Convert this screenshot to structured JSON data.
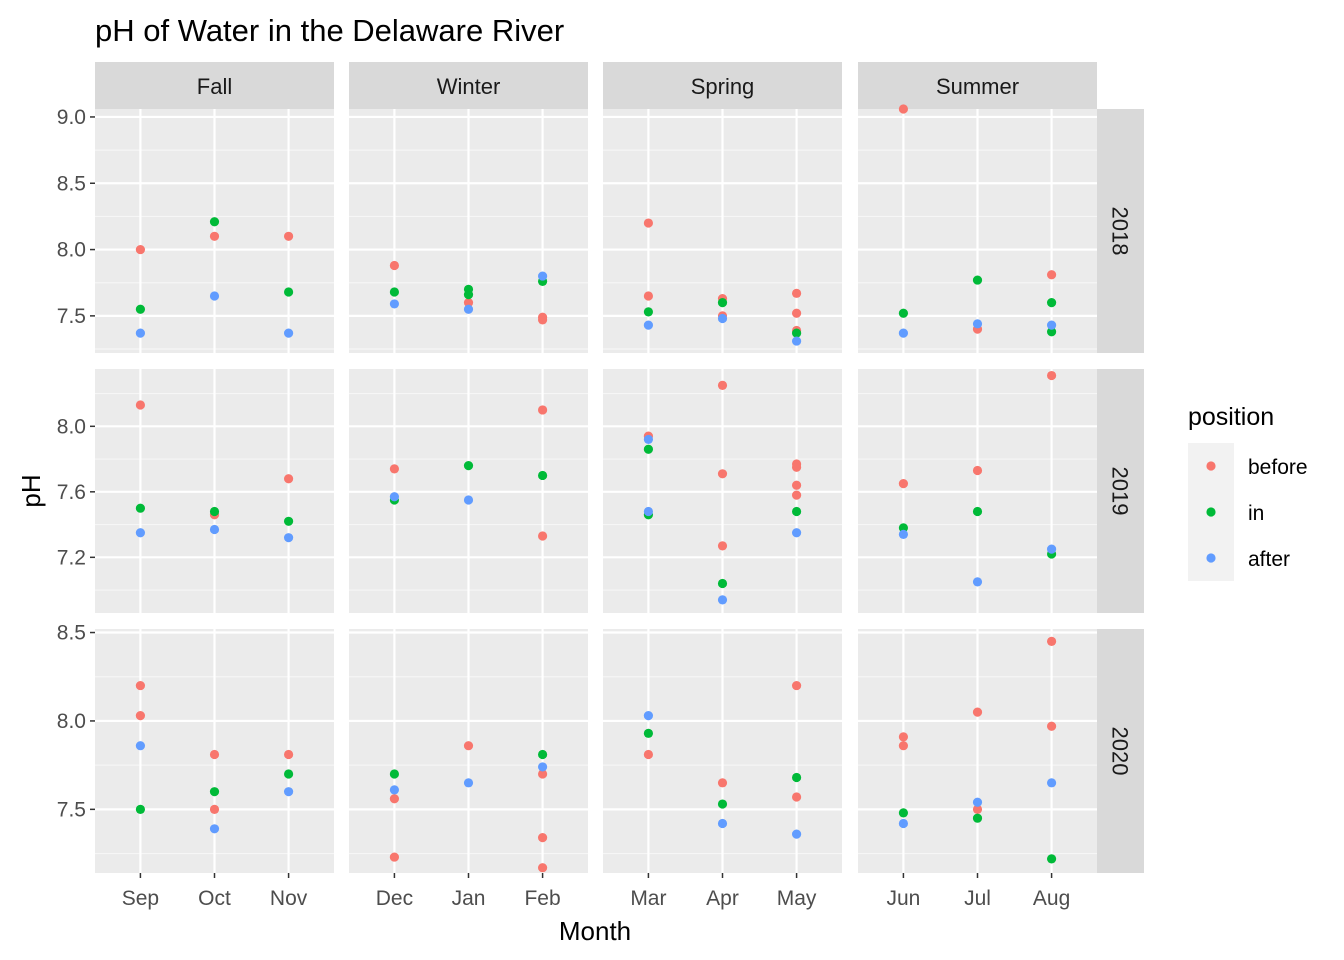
{
  "chart_data": {
    "type": "scatter",
    "title": "pH of Water in the Delaware River",
    "xlabel": "Month",
    "ylabel": "pH",
    "facet_cols": [
      {
        "name": "Fall",
        "months": [
          "Sep",
          "Oct",
          "Nov"
        ]
      },
      {
        "name": "Winter",
        "months": [
          "Dec",
          "Jan",
          "Feb"
        ]
      },
      {
        "name": "Spring",
        "months": [
          "Mar",
          "Apr",
          "May"
        ]
      },
      {
        "name": "Summer",
        "months": [
          "Jun",
          "Jul",
          "Aug"
        ]
      }
    ],
    "facet_rows": [
      {
        "name": "2018",
        "ylim": [
          7.22,
          9.06
        ],
        "yticks": [
          "7.5",
          "8.0",
          "8.5",
          "9.0"
        ]
      },
      {
        "name": "2019",
        "ylim": [
          6.86,
          8.35
        ],
        "yticks": [
          "7.2",
          "7.6",
          "8.0"
        ]
      },
      {
        "name": "2020",
        "ylim": [
          7.14,
          8.52
        ],
        "yticks": [
          "7.5",
          "8.0",
          "8.5"
        ]
      }
    ],
    "legend": {
      "title": "position",
      "placement": "right",
      "entries": [
        {
          "label": "before",
          "color": "#F8766D"
        },
        {
          "label": "in",
          "color": "#00BA38"
        },
        {
          "label": "after",
          "color": "#619CFF"
        }
      ]
    },
    "series": [
      {
        "name": "before",
        "color": "#F8766D",
        "points": [
          {
            "year": "2018",
            "month": "Sep",
            "pH": 8.0
          },
          {
            "year": "2018",
            "month": "Oct",
            "pH": 8.1
          },
          {
            "year": "2018",
            "month": "Nov",
            "pH": 8.1
          },
          {
            "year": "2018",
            "month": "Dec",
            "pH": 7.88
          },
          {
            "year": "2018",
            "month": "Jan",
            "pH": 7.6
          },
          {
            "year": "2018",
            "month": "Feb",
            "pH": 7.49
          },
          {
            "year": "2018",
            "month": "Feb",
            "pH": 7.47
          },
          {
            "year": "2018",
            "month": "Mar",
            "pH": 8.2
          },
          {
            "year": "2018",
            "month": "Mar",
            "pH": 7.65
          },
          {
            "year": "2018",
            "month": "Apr",
            "pH": 7.63
          },
          {
            "year": "2018",
            "month": "Apr",
            "pH": 7.5
          },
          {
            "year": "2018",
            "month": "May",
            "pH": 7.67
          },
          {
            "year": "2018",
            "month": "May",
            "pH": 7.52
          },
          {
            "year": "2018",
            "month": "May",
            "pH": 7.39
          },
          {
            "year": "2018",
            "month": "Jun",
            "pH": 9.06
          },
          {
            "year": "2018",
            "month": "Jul",
            "pH": 7.4
          },
          {
            "year": "2018",
            "month": "Aug",
            "pH": 7.81
          },
          {
            "year": "2019",
            "month": "Sep",
            "pH": 8.13
          },
          {
            "year": "2019",
            "month": "Oct",
            "pH": 7.46
          },
          {
            "year": "2019",
            "month": "Nov",
            "pH": 7.68
          },
          {
            "year": "2019",
            "month": "Dec",
            "pH": 7.74
          },
          {
            "year": "2019",
            "month": "Feb",
            "pH": 8.1
          },
          {
            "year": "2019",
            "month": "Feb",
            "pH": 7.33
          },
          {
            "year": "2019",
            "month": "Mar",
            "pH": 7.94
          },
          {
            "year": "2019",
            "month": "Apr",
            "pH": 8.25
          },
          {
            "year": "2019",
            "month": "Apr",
            "pH": 7.71
          },
          {
            "year": "2019",
            "month": "Apr",
            "pH": 7.27
          },
          {
            "year": "2019",
            "month": "May",
            "pH": 7.77
          },
          {
            "year": "2019",
            "month": "May",
            "pH": 7.75
          },
          {
            "year": "2019",
            "month": "May",
            "pH": 7.64
          },
          {
            "year": "2019",
            "month": "May",
            "pH": 7.58
          },
          {
            "year": "2019",
            "month": "Jun",
            "pH": 7.65
          },
          {
            "year": "2019",
            "month": "Jul",
            "pH": 7.73
          },
          {
            "year": "2019",
            "month": "Aug",
            "pH": 8.31
          },
          {
            "year": "2020",
            "month": "Sep",
            "pH": 8.2
          },
          {
            "year": "2020",
            "month": "Sep",
            "pH": 8.03
          },
          {
            "year": "2020",
            "month": "Oct",
            "pH": 7.81
          },
          {
            "year": "2020",
            "month": "Oct",
            "pH": 7.5
          },
          {
            "year": "2020",
            "month": "Nov",
            "pH": 7.81
          },
          {
            "year": "2020",
            "month": "Dec",
            "pH": 7.56
          },
          {
            "year": "2020",
            "month": "Dec",
            "pH": 7.23
          },
          {
            "year": "2020",
            "month": "Jan",
            "pH": 7.86
          },
          {
            "year": "2020",
            "month": "Feb",
            "pH": 7.7
          },
          {
            "year": "2020",
            "month": "Feb",
            "pH": 7.34
          },
          {
            "year": "2020",
            "month": "Feb",
            "pH": 7.17
          },
          {
            "year": "2020",
            "month": "Mar",
            "pH": 7.81
          },
          {
            "year": "2020",
            "month": "Apr",
            "pH": 7.65
          },
          {
            "year": "2020",
            "month": "May",
            "pH": 8.2
          },
          {
            "year": "2020",
            "month": "May",
            "pH": 7.57
          },
          {
            "year": "2020",
            "month": "Jun",
            "pH": 7.91
          },
          {
            "year": "2020",
            "month": "Jun",
            "pH": 7.86
          },
          {
            "year": "2020",
            "month": "Jul",
            "pH": 8.05
          },
          {
            "year": "2020",
            "month": "Jul",
            "pH": 7.5
          },
          {
            "year": "2020",
            "month": "Aug",
            "pH": 8.45
          },
          {
            "year": "2020",
            "month": "Aug",
            "pH": 7.97
          }
        ]
      },
      {
        "name": "in",
        "color": "#00BA38",
        "points": [
          {
            "year": "2018",
            "month": "Sep",
            "pH": 7.55
          },
          {
            "year": "2018",
            "month": "Oct",
            "pH": 8.21
          },
          {
            "year": "2018",
            "month": "Nov",
            "pH": 7.68
          },
          {
            "year": "2018",
            "month": "Dec",
            "pH": 7.68
          },
          {
            "year": "2018",
            "month": "Jan",
            "pH": 7.7
          },
          {
            "year": "2018",
            "month": "Jan",
            "pH": 7.66
          },
          {
            "year": "2018",
            "month": "Feb",
            "pH": 7.76
          },
          {
            "year": "2018",
            "month": "Mar",
            "pH": 7.53
          },
          {
            "year": "2018",
            "month": "Apr",
            "pH": 7.6
          },
          {
            "year": "2018",
            "month": "May",
            "pH": 7.37
          },
          {
            "year": "2018",
            "month": "Jun",
            "pH": 7.52
          },
          {
            "year": "2018",
            "month": "Jul",
            "pH": 7.77
          },
          {
            "year": "2018",
            "month": "Aug",
            "pH": 7.6
          },
          {
            "year": "2018",
            "month": "Aug",
            "pH": 7.38
          },
          {
            "year": "2019",
            "month": "Sep",
            "pH": 7.5
          },
          {
            "year": "2019",
            "month": "Oct",
            "pH": 7.48
          },
          {
            "year": "2019",
            "month": "Nov",
            "pH": 7.42
          },
          {
            "year": "2019",
            "month": "Dec",
            "pH": 7.55
          },
          {
            "year": "2019",
            "month": "Jan",
            "pH": 7.76
          },
          {
            "year": "2019",
            "month": "Feb",
            "pH": 7.7
          },
          {
            "year": "2019",
            "month": "Mar",
            "pH": 7.86
          },
          {
            "year": "2019",
            "month": "Mar",
            "pH": 7.46
          },
          {
            "year": "2019",
            "month": "Apr",
            "pH": 7.04
          },
          {
            "year": "2019",
            "month": "May",
            "pH": 7.48
          },
          {
            "year": "2019",
            "month": "Jun",
            "pH": 7.38
          },
          {
            "year": "2019",
            "month": "Jul",
            "pH": 7.48
          },
          {
            "year": "2019",
            "month": "Aug",
            "pH": 7.22
          },
          {
            "year": "2020",
            "month": "Sep",
            "pH": 7.5
          },
          {
            "year": "2020",
            "month": "Oct",
            "pH": 7.6
          },
          {
            "year": "2020",
            "month": "Nov",
            "pH": 7.7
          },
          {
            "year": "2020",
            "month": "Dec",
            "pH": 7.7
          },
          {
            "year": "2020",
            "month": "Feb",
            "pH": 7.81
          },
          {
            "year": "2020",
            "month": "Mar",
            "pH": 7.93
          },
          {
            "year": "2020",
            "month": "Apr",
            "pH": 7.53
          },
          {
            "year": "2020",
            "month": "May",
            "pH": 7.68
          },
          {
            "year": "2020",
            "month": "Jun",
            "pH": 7.48
          },
          {
            "year": "2020",
            "month": "Jul",
            "pH": 7.45
          },
          {
            "year": "2020",
            "month": "Aug",
            "pH": 7.22
          }
        ]
      },
      {
        "name": "after",
        "color": "#619CFF",
        "points": [
          {
            "year": "2018",
            "month": "Sep",
            "pH": 7.37
          },
          {
            "year": "2018",
            "month": "Oct",
            "pH": 7.65
          },
          {
            "year": "2018",
            "month": "Nov",
            "pH": 7.37
          },
          {
            "year": "2018",
            "month": "Dec",
            "pH": 7.59
          },
          {
            "year": "2018",
            "month": "Jan",
            "pH": 7.55
          },
          {
            "year": "2018",
            "month": "Feb",
            "pH": 7.8
          },
          {
            "year": "2018",
            "month": "Mar",
            "pH": 7.43
          },
          {
            "year": "2018",
            "month": "Apr",
            "pH": 7.48
          },
          {
            "year": "2018",
            "month": "May",
            "pH": 7.31
          },
          {
            "year": "2018",
            "month": "Jun",
            "pH": 7.37
          },
          {
            "year": "2018",
            "month": "Jul",
            "pH": 7.44
          },
          {
            "year": "2018",
            "month": "Aug",
            "pH": 7.43
          },
          {
            "year": "2019",
            "month": "Sep",
            "pH": 7.35
          },
          {
            "year": "2019",
            "month": "Oct",
            "pH": 7.37
          },
          {
            "year": "2019",
            "month": "Nov",
            "pH": 7.32
          },
          {
            "year": "2019",
            "month": "Dec",
            "pH": 7.57
          },
          {
            "year": "2019",
            "month": "Jan",
            "pH": 7.55
          },
          {
            "year": "2019",
            "month": "Mar",
            "pH": 7.92
          },
          {
            "year": "2019",
            "month": "Mar",
            "pH": 7.48
          },
          {
            "year": "2019",
            "month": "Apr",
            "pH": 6.94
          },
          {
            "year": "2019",
            "month": "May",
            "pH": 7.35
          },
          {
            "year": "2019",
            "month": "Jun",
            "pH": 7.34
          },
          {
            "year": "2019",
            "month": "Jul",
            "pH": 7.05
          },
          {
            "year": "2019",
            "month": "Aug",
            "pH": 7.25
          },
          {
            "year": "2020",
            "month": "Sep",
            "pH": 7.86
          },
          {
            "year": "2020",
            "month": "Oct",
            "pH": 7.39
          },
          {
            "year": "2020",
            "month": "Nov",
            "pH": 7.6
          },
          {
            "year": "2020",
            "month": "Dec",
            "pH": 7.61
          },
          {
            "year": "2020",
            "month": "Jan",
            "pH": 7.65
          },
          {
            "year": "2020",
            "month": "Feb",
            "pH": 7.74
          },
          {
            "year": "2020",
            "month": "Mar",
            "pH": 8.03
          },
          {
            "year": "2020",
            "month": "Apr",
            "pH": 7.42
          },
          {
            "year": "2020",
            "month": "May",
            "pH": 7.36
          },
          {
            "year": "2020",
            "month": "Jun",
            "pH": 7.42
          },
          {
            "year": "2020",
            "month": "Jul",
            "pH": 7.54
          },
          {
            "year": "2020",
            "month": "Aug",
            "pH": 7.65
          }
        ]
      }
    ]
  }
}
